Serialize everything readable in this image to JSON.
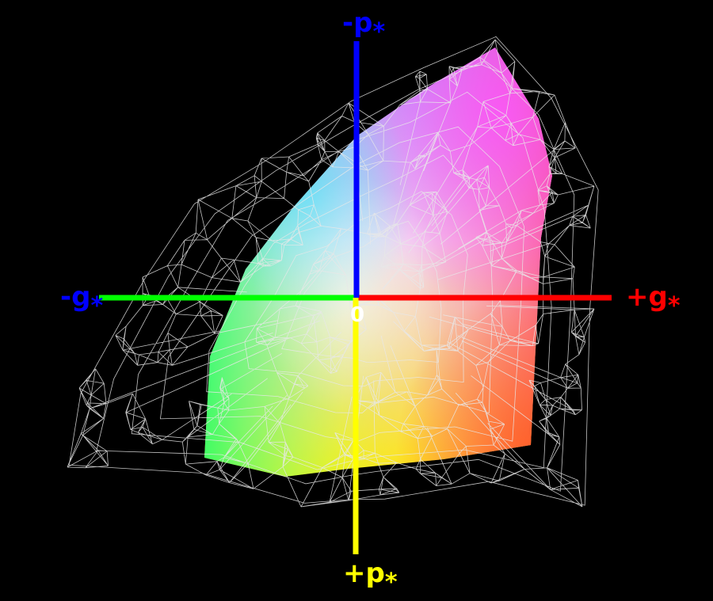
{
  "axes": {
    "top": {
      "text": "-p",
      "sub": "*"
    },
    "right": {
      "text": "+g",
      "sub": "*"
    },
    "left": {
      "text": "-g",
      "sub": "*"
    },
    "bottom": {
      "text": "+p",
      "sub": "*"
    }
  },
  "origin": "0"
}
